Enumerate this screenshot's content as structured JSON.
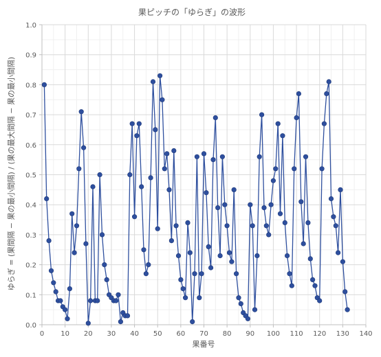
{
  "chart_data": {
    "type": "line",
    "title": "果ピッチの「ゆらぎ」の波形",
    "xlabel": "果番号",
    "ylabel": "ゆらぎ = (果間隔 − 果の最小間隔) / (果の最大間隔 − 果の最小間隔)",
    "xlim": [
      0,
      140
    ],
    "ylim": [
      0,
      1.0
    ],
    "xticks": [
      "0",
      "10",
      "20",
      "30",
      "40",
      "50",
      "60",
      "70",
      "80",
      "90",
      "100",
      "110",
      "120",
      "130",
      "140"
    ],
    "yticks": [
      "0.0",
      "0.1",
      "0.2",
      "0.3",
      "0.4",
      "0.5",
      "0.6",
      "0.7",
      "0.8",
      "0.9",
      "1.0"
    ],
    "grid": true,
    "marker": "circle",
    "line_color": "#2e4f9e",
    "marker_color": "#2e4f9e",
    "series": [
      {
        "x": [
          1,
          2,
          3,
          4,
          5,
          6,
          7,
          8,
          9,
          10,
          11,
          12,
          13,
          14,
          15,
          16,
          17,
          18,
          19,
          20,
          21,
          22,
          23,
          24,
          25,
          26,
          27,
          28,
          29,
          30,
          31,
          32,
          33,
          34,
          35,
          36,
          37,
          38,
          39,
          40,
          41,
          42,
          43,
          44,
          45,
          46,
          47,
          48,
          49,
          50,
          51,
          52,
          53,
          54,
          55,
          56,
          57,
          58,
          59,
          60,
          61,
          62,
          63,
          64,
          65,
          66,
          67,
          68,
          69,
          70,
          71,
          72,
          73,
          74,
          75,
          76,
          77,
          78,
          79,
          80,
          81,
          82,
          83,
          84,
          85,
          86,
          87,
          88,
          89,
          90,
          91,
          92,
          93,
          94,
          95,
          96,
          97,
          98,
          99,
          100,
          101,
          102,
          103,
          104,
          105,
          106,
          107,
          108,
          109,
          110,
          111,
          112,
          113,
          114,
          115,
          116,
          117,
          118,
          119,
          120,
          121,
          122,
          123,
          124,
          125,
          126,
          127,
          128,
          129,
          130,
          131,
          132
        ],
        "y": [
          0.8,
          0.42,
          0.28,
          0.18,
          0.14,
          0.11,
          0.08,
          0.08,
          0.06,
          0.05,
          0.02,
          0.12,
          0.37,
          0.24,
          0.33,
          0.52,
          0.71,
          0.59,
          0.27,
          0.005,
          0.08,
          0.46,
          0.08,
          0.08,
          0.5,
          0.3,
          0.2,
          0.15,
          0.1,
          0.09,
          0.08,
          0.08,
          0.1,
          0.01,
          0.04,
          0.03,
          0.03,
          0.5,
          0.67,
          0.36,
          0.63,
          0.67,
          0.46,
          0.25,
          0.17,
          0.2,
          0.49,
          0.81,
          0.65,
          0.32,
          0.83,
          0.75,
          0.52,
          0.57,
          0.45,
          0.28,
          0.58,
          0.33,
          0.23,
          0.15,
          0.12,
          0.09,
          0.34,
          0.24,
          0.01,
          0.17,
          0.56,
          0.09,
          0.17,
          0.57,
          0.44,
          0.26,
          0.19,
          0.55,
          0.69,
          0.39,
          0.23,
          0.56,
          0.4,
          0.33,
          0.24,
          0.21,
          0.45,
          0.17,
          0.09,
          0.07,
          0.04,
          0.03,
          0.02,
          0.4,
          0.33,
          0.05,
          0.23,
          0.56,
          0.7,
          0.39,
          0.33,
          0.3,
          0.4,
          0.48,
          0.52,
          0.67,
          0.37,
          0.63,
          0.34,
          0.23,
          0.17,
          0.13,
          0.52,
          0.69,
          0.77,
          0.41,
          0.27,
          0.56,
          0.34,
          0.22,
          0.15,
          0.13,
          0.09,
          0.08,
          0.52,
          0.67,
          0.77,
          0.81,
          0.42,
          0.36,
          0.33,
          0.24,
          0.45,
          0.21,
          0.11,
          0.05
        ]
      }
    ]
  }
}
